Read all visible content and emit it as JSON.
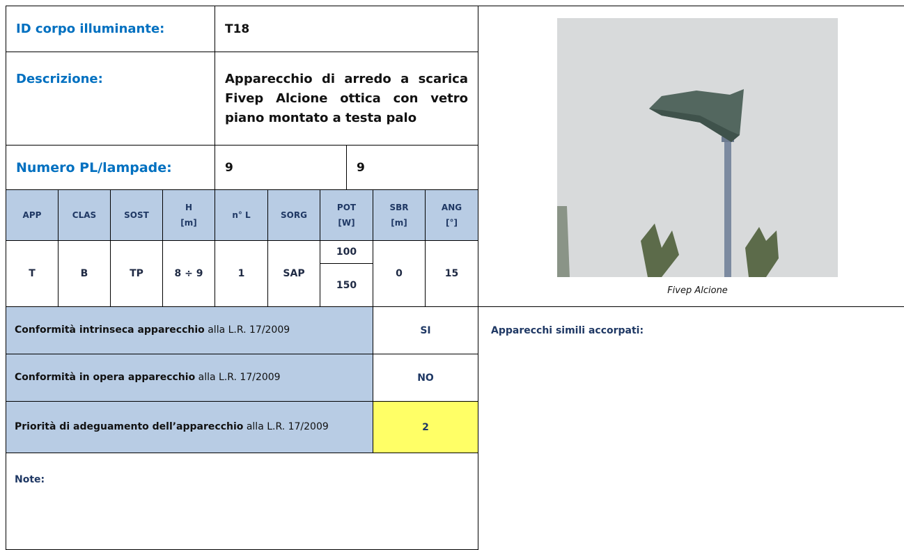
{
  "header": {
    "id_label": "ID corpo illuminante:",
    "id_value": "T18",
    "description_label": "Descrizione:",
    "description": "Apparecchio di arredo a scarica Fivep Alcione ottica con vetro piano montato a testa palo",
    "count_label": "Numero PL/lampade:",
    "count_pl": "9",
    "count_lamps": "9"
  },
  "specs": {
    "headers": [
      "APP",
      "CLAS",
      "SOST",
      "H\n[m]",
      "n° L",
      "SORG",
      "POT\n[W]",
      "SBR\n[m]",
      "ANG\n[°]"
    ],
    "values": {
      "app": "T",
      "clas": "B",
      "sost": "TP",
      "h": "8 ÷ 9",
      "n_l": "1",
      "sorg": "SAP",
      "pot": [
        "100",
        "150"
      ],
      "sbr": "0",
      "ang": "15"
    }
  },
  "conformity": [
    {
      "label_bold": "Conformità intrinseca apparecchio",
      "label_rest": " alla L.R. 17/2009",
      "value": "SI"
    },
    {
      "label_bold": "Conformità in opera apparecchio",
      "label_rest": " alla L.R. 17/2009",
      "value": "NO"
    },
    {
      "label_bold": "Priorità di adeguamento dell’apparecchio",
      "label_rest": " alla L.R. 17/2009",
      "value": "2"
    }
  ],
  "note_label": "Note:",
  "photo": {
    "caption": "Fivep Alcione"
  },
  "similar_label": "Apparecchi simili accorpati:"
}
